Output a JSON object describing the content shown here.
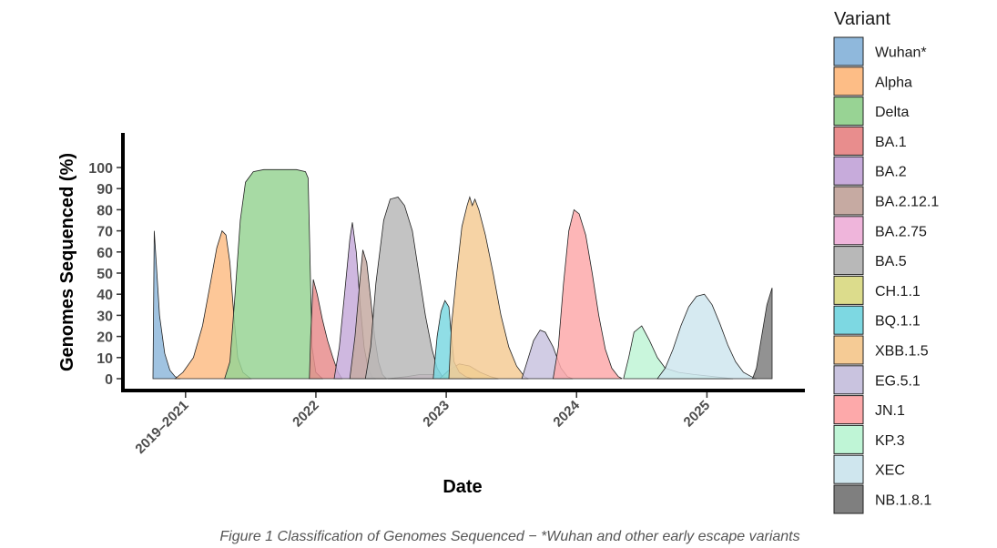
{
  "chart_data": {
    "type": "area",
    "title": "",
    "xlabel": "Date",
    "ylabel": "Genomes Sequenced (%)",
    "caption": "Figure 1 Classification of Genomes Sequenced − *Wuhan and other early escape variants",
    "ylim": [
      0,
      100
    ],
    "yticks": [
      0,
      10,
      20,
      30,
      40,
      50,
      60,
      70,
      80,
      90,
      100
    ],
    "x_unit": "year",
    "xlim": [
      2020.75,
      2025.5
    ],
    "x_ticks": [
      {
        "value": 2021.0,
        "label": "2019–2021"
      },
      {
        "value": 2022.0,
        "label": "2022"
      },
      {
        "value": 2023.0,
        "label": "2023"
      },
      {
        "value": 2024.0,
        "label": "2024"
      },
      {
        "value": 2025.0,
        "label": "2025"
      }
    ],
    "legend_title": "Variant",
    "legend_position": "right",
    "grid": false,
    "series": [
      {
        "name": "Wuhan*",
        "color": "#8fb8dc",
        "points": [
          [
            2020.75,
            0
          ],
          [
            2020.76,
            70
          ],
          [
            2020.78,
            50
          ],
          [
            2020.8,
            30
          ],
          [
            2020.84,
            12
          ],
          [
            2020.88,
            4
          ],
          [
            2020.92,
            1
          ],
          [
            2020.96,
            0
          ]
        ]
      },
      {
        "name": "Alpha",
        "color": "#fdbd86",
        "points": [
          [
            2020.92,
            0
          ],
          [
            2020.98,
            3
          ],
          [
            2021.06,
            10
          ],
          [
            2021.13,
            25
          ],
          [
            2021.19,
            45
          ],
          [
            2021.24,
            62
          ],
          [
            2021.28,
            70
          ],
          [
            2021.31,
            68
          ],
          [
            2021.34,
            55
          ],
          [
            2021.37,
            30
          ],
          [
            2021.4,
            10
          ],
          [
            2021.44,
            3
          ],
          [
            2021.5,
            0
          ]
        ]
      },
      {
        "name": "Delta",
        "color": "#98d394",
        "points": [
          [
            2021.3,
            0
          ],
          [
            2021.34,
            8
          ],
          [
            2021.38,
            40
          ],
          [
            2021.42,
            75
          ],
          [
            2021.46,
            93
          ],
          [
            2021.52,
            98
          ],
          [
            2021.6,
            99
          ],
          [
            2021.75,
            99
          ],
          [
            2021.85,
            99
          ],
          [
            2021.92,
            98
          ],
          [
            2021.94,
            95
          ],
          [
            2021.95,
            70
          ],
          [
            2021.97,
            15
          ],
          [
            2022.0,
            3
          ],
          [
            2022.05,
            0
          ]
        ]
      },
      {
        "name": "BA.1",
        "color": "#e88d8d",
        "points": [
          [
            2021.95,
            0
          ],
          [
            2021.96,
            20
          ],
          [
            2021.98,
            47
          ],
          [
            2022.01,
            40
          ],
          [
            2022.05,
            28
          ],
          [
            2022.09,
            18
          ],
          [
            2022.13,
            10
          ],
          [
            2022.17,
            3
          ],
          [
            2022.2,
            0
          ]
        ]
      },
      {
        "name": "BA.2",
        "color": "#c7abdb",
        "points": [
          [
            2022.14,
            0
          ],
          [
            2022.18,
            15
          ],
          [
            2022.22,
            40
          ],
          [
            2022.26,
            66
          ],
          [
            2022.28,
            74
          ],
          [
            2022.31,
            60
          ],
          [
            2022.34,
            35
          ],
          [
            2022.37,
            15
          ],
          [
            2022.4,
            5
          ],
          [
            2022.43,
            1
          ],
          [
            2022.46,
            0
          ]
        ]
      },
      {
        "name": "BA.2.12.1",
        "color": "#c6aaa2",
        "points": [
          [
            2022.26,
            0
          ],
          [
            2022.3,
            20
          ],
          [
            2022.34,
            48
          ],
          [
            2022.36,
            61
          ],
          [
            2022.39,
            55
          ],
          [
            2022.42,
            38
          ],
          [
            2022.45,
            20
          ],
          [
            2022.48,
            8
          ],
          [
            2022.51,
            2
          ],
          [
            2022.54,
            0
          ]
        ]
      },
      {
        "name": "BA.2.75",
        "color": "#efb5db",
        "points": [
          [
            2022.55,
            0
          ],
          [
            2022.7,
            1
          ],
          [
            2022.8,
            2
          ],
          [
            2022.9,
            2
          ],
          [
            2022.98,
            1
          ],
          [
            2023.05,
            0
          ]
        ]
      },
      {
        "name": "BA.5",
        "color": "#b8b8b8",
        "points": [
          [
            2022.38,
            0
          ],
          [
            2022.42,
            15
          ],
          [
            2022.46,
            45
          ],
          [
            2022.52,
            75
          ],
          [
            2022.57,
            85
          ],
          [
            2022.63,
            86
          ],
          [
            2022.68,
            82
          ],
          [
            2022.74,
            70
          ],
          [
            2022.79,
            50
          ],
          [
            2022.84,
            30
          ],
          [
            2022.89,
            14
          ],
          [
            2022.93,
            5
          ],
          [
            2022.97,
            1
          ],
          [
            2023.0,
            0
          ]
        ]
      },
      {
        "name": "CH.1.1",
        "color": "#dcdc8c",
        "points": [
          [
            2022.95,
            0
          ],
          [
            2023.02,
            4
          ],
          [
            2023.1,
            7
          ],
          [
            2023.18,
            6
          ],
          [
            2023.26,
            3
          ],
          [
            2023.34,
            1
          ],
          [
            2023.4,
            0
          ]
        ]
      },
      {
        "name": "BQ.1.1",
        "color": "#7dd8e2",
        "points": [
          [
            2022.9,
            0
          ],
          [
            2022.93,
            20
          ],
          [
            2022.96,
            32
          ],
          [
            2022.99,
            37
          ],
          [
            2023.02,
            34
          ],
          [
            2023.04,
            20
          ],
          [
            2023.06,
            8
          ],
          [
            2023.1,
            3
          ],
          [
            2023.15,
            1
          ],
          [
            2023.2,
            0
          ]
        ]
      },
      {
        "name": "XBB.1.5",
        "color": "#f5cb95",
        "points": [
          [
            2023.02,
            0
          ],
          [
            2023.04,
            25
          ],
          [
            2023.08,
            50
          ],
          [
            2023.12,
            72
          ],
          [
            2023.16,
            82
          ],
          [
            2023.18,
            86
          ],
          [
            2023.2,
            82
          ],
          [
            2023.22,
            85
          ],
          [
            2023.25,
            80
          ],
          [
            2023.3,
            68
          ],
          [
            2023.36,
            50
          ],
          [
            2023.42,
            30
          ],
          [
            2023.48,
            15
          ],
          [
            2023.54,
            6
          ],
          [
            2023.6,
            1
          ],
          [
            2023.63,
            0
          ]
        ]
      },
      {
        "name": "EG.5.1",
        "color": "#c9c3df",
        "points": [
          [
            2023.58,
            0
          ],
          [
            2023.62,
            8
          ],
          [
            2023.67,
            18
          ],
          [
            2023.72,
            23
          ],
          [
            2023.76,
            22
          ],
          [
            2023.82,
            15
          ],
          [
            2023.88,
            5
          ],
          [
            2023.93,
            1
          ],
          [
            2023.97,
            0
          ]
        ]
      },
      {
        "name": "JN.1",
        "color": "#fda9aa",
        "points": [
          [
            2023.82,
            0
          ],
          [
            2023.86,
            15
          ],
          [
            2023.9,
            45
          ],
          [
            2023.94,
            70
          ],
          [
            2023.98,
            80
          ],
          [
            2024.02,
            78
          ],
          [
            2024.07,
            68
          ],
          [
            2024.12,
            50
          ],
          [
            2024.17,
            30
          ],
          [
            2024.22,
            14
          ],
          [
            2024.27,
            5
          ],
          [
            2024.32,
            1
          ],
          [
            2024.35,
            0
          ]
        ]
      },
      {
        "name": "KP.3",
        "color": "#bff5d6",
        "points": [
          [
            2024.36,
            0
          ],
          [
            2024.4,
            10
          ],
          [
            2024.44,
            22
          ],
          [
            2024.5,
            25
          ],
          [
            2024.56,
            18
          ],
          [
            2024.62,
            10
          ],
          [
            2024.68,
            5
          ],
          [
            2024.78,
            3
          ],
          [
            2024.9,
            2
          ],
          [
            2025.05,
            1
          ],
          [
            2025.2,
            0
          ]
        ]
      },
      {
        "name": "XEC",
        "color": "#cfe6ee",
        "points": [
          [
            2024.62,
            0
          ],
          [
            2024.68,
            5
          ],
          [
            2024.74,
            14
          ],
          [
            2024.8,
            25
          ],
          [
            2024.86,
            34
          ],
          [
            2024.92,
            39
          ],
          [
            2024.98,
            40
          ],
          [
            2025.04,
            35
          ],
          [
            2025.1,
            26
          ],
          [
            2025.16,
            16
          ],
          [
            2025.22,
            8
          ],
          [
            2025.28,
            3
          ],
          [
            2025.34,
            1
          ],
          [
            2025.38,
            0
          ]
        ]
      },
      {
        "name": "NB.1.8.1",
        "color": "#7f7f7f",
        "points": [
          [
            2025.35,
            0
          ],
          [
            2025.38,
            5
          ],
          [
            2025.42,
            20
          ],
          [
            2025.46,
            35
          ],
          [
            2025.5,
            43
          ],
          [
            2025.5,
            0
          ]
        ]
      }
    ]
  }
}
